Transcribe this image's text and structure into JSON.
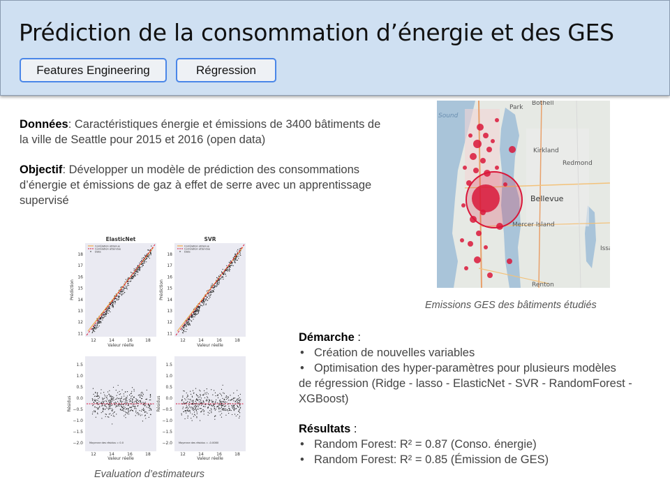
{
  "header": {
    "title": "Prédiction de la consommation d’énergie et des GES",
    "tabs": [
      {
        "label": "Features Engineering"
      },
      {
        "label": "Régression"
      }
    ]
  },
  "intro": {
    "donnees_label": "Données",
    "donnees_text": ": Caractéristiques énergie et émissions de 3400 bâtiments de la ville de Seattle pour 2015 et 2016 (open data)",
    "objectif_label": "Objectif",
    "objectif_text": ": Développer un modèle de prédiction des consommations d’énergie et émissions de gaz à effet de serre avec un apprentissage supervisé"
  },
  "map": {
    "caption": "Emissions GES des bâtiments étudiés",
    "labels": [
      "Sound",
      "Park",
      "Bothell",
      "Kirkland",
      "Redmond",
      "Bellevue",
      "Mercer Island",
      "Renton",
      "Issa"
    ]
  },
  "plots": {
    "caption": "Evaluation d’estimateurs",
    "titles": [
      "ElasticNet",
      "SVR"
    ],
    "xlabel": "Valeur réelle",
    "ylabel_top": "Prédiction",
    "ylabel_bottom": "Résidus",
    "legend": [
      "Corrélation obtenue",
      "Corrélation attendue",
      "Data"
    ],
    "residual_notes": [
      "Moyenne des résidus = 0.0",
      "Moyenne des résidus = -0.0080"
    ],
    "top_yticks": [
      "18",
      "17",
      "16",
      "15",
      "14",
      "13",
      "12",
      "11"
    ],
    "top_xticks": [
      "12",
      "14",
      "16",
      "18"
    ],
    "bottom_yticks": [
      "1.5",
      "1.0",
      "0.5",
      "0.0",
      "−0.5",
      "−1.0",
      "−1.5",
      "−2.0"
    ]
  },
  "demarche": {
    "label": "Démarche",
    "label_suffix": " :",
    "items": [
      "Création de nouvelles variables",
      "Optimisation des hyper-paramètres pour plusieurs modèles"
    ],
    "continuation": "de régression (Ridge - lasso - ElasticNet - SVR - RandomForest - XGBoost)"
  },
  "resultats": {
    "label": "Résultats",
    "label_suffix": " :",
    "items": [
      "Random Forest: R² = 0.87 (Conso. énergie)",
      "Random Forest: R² = 0.85 (Émission de GES)"
    ]
  },
  "bullet_char": "•"
}
